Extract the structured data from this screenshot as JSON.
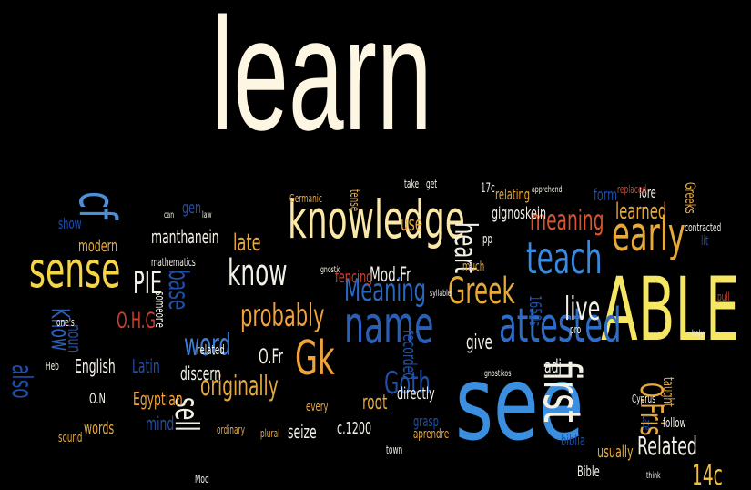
{
  "words": [
    {
      "text": "learn",
      "color": "#fdf6e3"
    },
    {
      "text": "knowledge",
      "color": "#fbe8a6"
    },
    {
      "text": "ABLE",
      "color": "#f5e663"
    },
    {
      "text": "see",
      "color": "#3b8fe0"
    },
    {
      "text": "sense",
      "color": "#f6d44a"
    },
    {
      "text": "cf",
      "color": "#4a90d9"
    },
    {
      "text": "teach",
      "color": "#3a8be0"
    },
    {
      "text": "early",
      "color": "#e8a93b"
    },
    {
      "text": "Greek",
      "color": "#e8a93b"
    },
    {
      "text": "Gk",
      "color": "#f0a23c"
    },
    {
      "text": "name",
      "color": "#2a5fb8"
    },
    {
      "text": "attested",
      "color": "#2e6dc7"
    },
    {
      "text": "Meaning",
      "color": "#2a67c0"
    },
    {
      "text": "know",
      "color": "#f3f0e6"
    },
    {
      "text": "PIE",
      "color": "#f3f0e6"
    },
    {
      "text": "probably",
      "color": "#f0a23c"
    },
    {
      "text": "word",
      "color": "#3a7fd8"
    },
    {
      "text": "live",
      "color": "#f3f0e6"
    },
    {
      "text": "first",
      "color": "#f3f0e6"
    },
    {
      "text": "heart",
      "color": "#f3f0e6"
    },
    {
      "text": "meaning",
      "color": "#d9542a"
    },
    {
      "text": "originally",
      "color": "#e8a93b"
    },
    {
      "text": "sell",
      "color": "#f3f0e6"
    },
    {
      "text": "Goth",
      "color": "#1f4fa8"
    },
    {
      "text": "Related",
      "color": "#f3f0e6"
    },
    {
      "text": "base",
      "color": "#1f4fa8"
    },
    {
      "text": "late",
      "color": "#e8a93b"
    },
    {
      "text": "O.H.G",
      "color": "#c9402e"
    },
    {
      "text": "Know",
      "color": "#2a5fb8"
    },
    {
      "text": "also",
      "color": "#1f4fa8"
    },
    {
      "text": "learned",
      "color": "#e8a93b"
    },
    {
      "text": "O.Fris",
      "color": "#e8a93b"
    },
    {
      "text": "14c",
      "color": "#f0c040"
    },
    {
      "text": "Mod.Fr",
      "color": "#f3f0e6"
    },
    {
      "text": "O.Fr",
      "color": "#f3f0e6"
    },
    {
      "text": "Latin",
      "color": "#1f4fa8"
    },
    {
      "text": "English",
      "color": "#f3f0e6"
    },
    {
      "text": "noun",
      "color": "#1f4fa8"
    },
    {
      "text": "recorded",
      "color": "#1f4fa8"
    },
    {
      "text": "modern",
      "color": "#e8a93b"
    },
    {
      "text": "root",
      "color": "#e8a93b"
    },
    {
      "text": "give",
      "color": "#f3f0e6"
    },
    {
      "text": "manthanein",
      "color": "#f3f0e6"
    },
    {
      "text": "gignoskein",
      "color": "#f3f0e6"
    },
    {
      "text": "fencing",
      "color": "#c9402e"
    },
    {
      "text": "Egyptian",
      "color": "#f0a23c"
    },
    {
      "text": "words",
      "color": "#e8a93b"
    },
    {
      "text": "discern",
      "color": "#f3f0e6"
    },
    {
      "text": "directly",
      "color": "#f3f0e6"
    },
    {
      "text": "seize",
      "color": "#f3f0e6"
    },
    {
      "text": "c.1200",
      "color": "#f3f0e6"
    },
    {
      "text": "adj",
      "color": "#f3f0e6"
    },
    {
      "text": "use",
      "color": "#e8a93b"
    },
    {
      "text": "1650s",
      "color": "#1f4fa8"
    },
    {
      "text": "Bible",
      "color": "#f3f0e6"
    },
    {
      "text": "usually",
      "color": "#e8a93b"
    },
    {
      "text": "form",
      "color": "#1f4fa8"
    },
    {
      "text": "lore",
      "color": "#f3f0e6"
    },
    {
      "text": "mind",
      "color": "#1f4fa8"
    },
    {
      "text": "O.N",
      "color": "#f3f0e6"
    },
    {
      "text": "gen",
      "color": "#1f4fa8"
    },
    {
      "text": "relating",
      "color": "#e8a93b"
    },
    {
      "text": "related",
      "color": "#f3f0e6"
    },
    {
      "text": "much",
      "color": "#e8a93b"
    },
    {
      "text": "every",
      "color": "#e8a93b"
    },
    {
      "text": "someone",
      "color": "#f3f0e6"
    },
    {
      "text": "sound",
      "color": "#e8a93b"
    },
    {
      "text": "grasp",
      "color": "#1f4fa8"
    },
    {
      "text": "aprendre",
      "color": "#e8a93b"
    },
    {
      "text": "show",
      "color": "#1f4fa8"
    },
    {
      "text": "taught",
      "color": "#e8a93b"
    },
    {
      "text": "follow",
      "color": "#f3f0e6"
    },
    {
      "text": "Greeks",
      "color": "#e8a93b"
    },
    {
      "text": "17c",
      "color": "#f3f0e6"
    },
    {
      "text": "plural",
      "color": "#e8a93b"
    },
    {
      "text": "ordinary",
      "color": "#e8a93b"
    },
    {
      "text": "biblia",
      "color": "#1f4fa8"
    },
    {
      "text": "Cyprus",
      "color": "#f3f0e6"
    },
    {
      "text": "tense",
      "color": "#e8a93b"
    },
    {
      "text": "Germanic",
      "color": "#e8a93b"
    },
    {
      "text": "take",
      "color": "#f3f0e6"
    },
    {
      "text": "get",
      "color": "#f3f0e6"
    },
    {
      "text": "mathematics",
      "color": "#f3f0e6"
    },
    {
      "text": "syllable",
      "color": "#f3f0e6"
    },
    {
      "text": "think",
      "color": "#f3f0e6"
    },
    {
      "text": "contracted",
      "color": "#f3f0e6"
    },
    {
      "text": "replaced",
      "color": "#c9402e"
    },
    {
      "text": "one's",
      "color": "#f3f0e6"
    },
    {
      "text": "gnostic",
      "color": "#f3f0e6"
    },
    {
      "text": "gnostikos",
      "color": "#f3f0e6"
    },
    {
      "text": "town",
      "color": "#f3f0e6"
    },
    {
      "text": "apprehend",
      "color": "#f3f0e6"
    },
    {
      "text": "Late",
      "color": "#1f4fa8"
    },
    {
      "text": "pro",
      "color": "#f3f0e6"
    },
    {
      "text": "pp",
      "color": "#f3f0e6"
    },
    {
      "text": "Mod",
      "color": "#f3f0e6"
    },
    {
      "text": "Heb",
      "color": "#f3f0e6"
    },
    {
      "text": "can",
      "color": "#f3f0e6"
    },
    {
      "text": "law",
      "color": "#f3f0e6"
    },
    {
      "text": "lit",
      "color": "#1f4fa8"
    },
    {
      "text": "pull",
      "color": "#c9402e"
    },
    {
      "text": "holy",
      "color": "#f3f0e6"
    }
  ]
}
